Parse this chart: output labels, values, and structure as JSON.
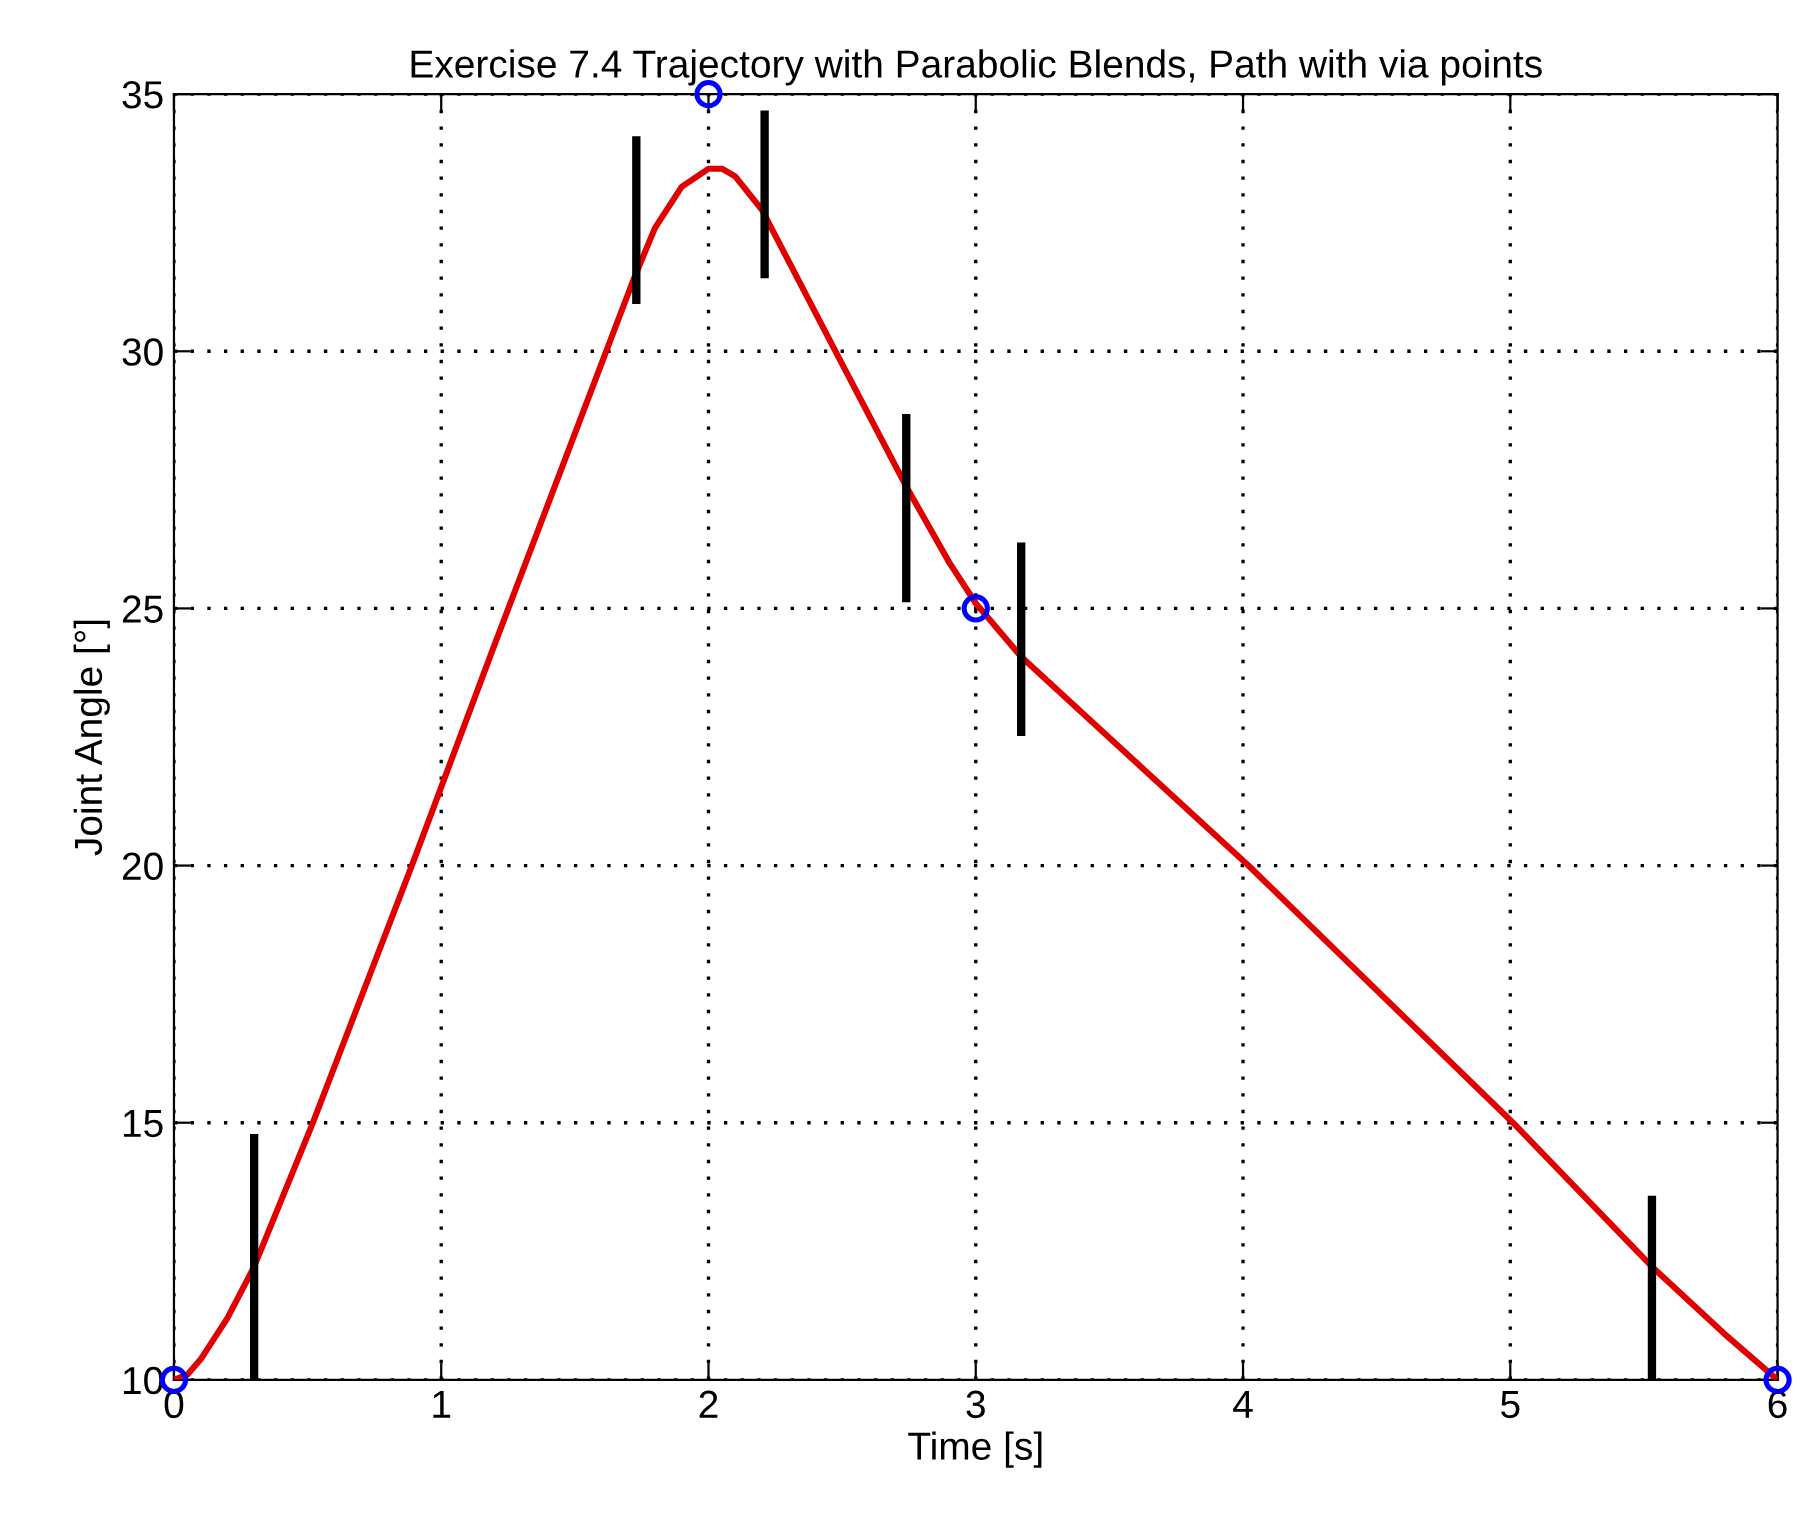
{
  "chart_data": {
    "type": "line",
    "title": "Exercise 7.4 Trajectory with Parabolic Blends, Path with via points",
    "xlabel": "Time [s]",
    "ylabel": "Joint Angle [°]",
    "xlim": [
      0,
      6
    ],
    "ylim": [
      10,
      35
    ],
    "xticks": [
      0,
      1,
      2,
      3,
      4,
      5,
      6
    ],
    "yticks": [
      10,
      15,
      20,
      25,
      30,
      35
    ],
    "grid": true,
    "line_style": "solid",
    "series": [
      {
        "color": "#e00000",
        "x": [
          0,
          0.05,
          0.1,
          0.2,
          0.3,
          0.52,
          0.89,
          1.2,
          1.5,
          1.72,
          1.8,
          1.9,
          2.0,
          2.05,
          2.1,
          2.2,
          2.485,
          2.74,
          2.9,
          3.0,
          3.17,
          4.02,
          5.01,
          5.53,
          5.8,
          6
        ],
        "values": [
          10,
          10.1,
          10.4,
          11.2,
          12.2,
          15,
          20,
          24.3,
          28.4,
          31.4,
          32.4,
          33.2,
          33.55,
          33.55,
          33.4,
          32.75,
          29.9,
          27.37,
          25.9,
          25.1,
          24.06,
          20,
          15,
          12.2,
          10.9,
          10
        ]
      },
      {
        "color": "#000000",
        "x": [
          0.3,
          0.3,
          null,
          1.73,
          1.73,
          null,
          2.21,
          2.21,
          null,
          2.74,
          2.74,
          null,
          3.17,
          3.17,
          null,
          5.53,
          5.53
        ],
        "values": [
          14.7,
          10,
          null,
          34.1,
          31.0,
          null,
          34.6,
          31.5,
          null,
          28.7,
          25.2,
          null,
          26.2,
          22.6,
          null,
          13.5,
          10
        ]
      },
      {
        "type": "scatter",
        "color": "#0000ff",
        "marker": "circle",
        "x": [
          0,
          2,
          3,
          6
        ],
        "values": [
          10,
          35,
          25,
          10
        ]
      }
    ]
  }
}
